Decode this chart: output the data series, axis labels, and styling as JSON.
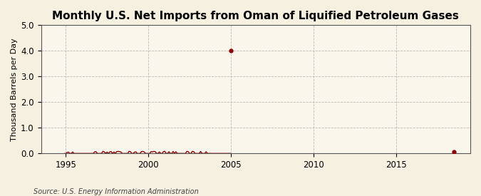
{
  "title": "Monthly U.S. Net Imports from Oman of Liquified Petroleum Gases",
  "ylabel": "Thousand Barrels per Day",
  "source": "Source: U.S. Energy Information Administration",
  "xlim": [
    1993.5,
    2019.5
  ],
  "ylim": [
    0.0,
    5.0
  ],
  "yticks": [
    0.0,
    1.0,
    2.0,
    3.0,
    4.0,
    5.0
  ],
  "xticks": [
    1995,
    2000,
    2005,
    2010,
    2015
  ],
  "bg_color": "#f5f0e0",
  "plot_bg_color": "#faf6ec",
  "line_color": "#8b0000",
  "grid_color": "#aaaaaa",
  "title_fontsize": 11,
  "label_fontsize": 8,
  "tick_fontsize": 8.5,
  "segments": [
    {
      "x": [
        1994.917,
        1995.0,
        1995.083,
        1995.167,
        1995.25,
        1995.333,
        1995.417,
        1995.5,
        1995.583,
        1995.667,
        1995.75,
        1995.833,
        1995.917,
        1996.0,
        1996.083,
        1996.167,
        1996.25,
        1996.333,
        1996.417,
        1996.5,
        1996.583,
        1996.667,
        1996.75,
        1996.833,
        1996.917,
        1997.0,
        1997.083,
        1997.167,
        1997.25,
        1997.333,
        1997.417,
        1997.5,
        1997.583,
        1997.667,
        1997.75,
        1997.833,
        1997.917,
        1998.0,
        1998.083,
        1998.167,
        1998.25,
        1998.333,
        1998.417,
        1998.5,
        1998.583,
        1998.667,
        1998.75,
        1998.833,
        1998.917,
        1999.0,
        1999.083,
        1999.167,
        1999.25,
        1999.333,
        1999.417,
        1999.5,
        1999.583,
        1999.667,
        1999.75,
        1999.833,
        1999.917,
        2000.0,
        2000.083,
        2000.167,
        2000.25,
        2000.333,
        2000.417,
        2000.5,
        2000.583,
        2000.667,
        2000.75,
        2000.833,
        2000.917,
        2001.0,
        2001.083,
        2001.167,
        2001.25,
        2001.333,
        2001.417,
        2001.5,
        2001.583,
        2001.667,
        2001.75,
        2001.833,
        2001.917,
        2002.0,
        2002.083,
        2002.167,
        2002.25,
        2002.333,
        2002.417,
        2002.5,
        2002.583,
        2002.667,
        2002.75,
        2002.833,
        2002.917,
        2003.0,
        2003.083,
        2003.167,
        2003.25,
        2003.333,
        2003.417,
        2003.5,
        2003.583,
        2003.667,
        2003.75,
        2003.833,
        2003.917,
        2004.0,
        2004.083,
        2004.167,
        2004.25,
        2004.333,
        2004.417,
        2004.5,
        2004.583,
        2004.667,
        2004.75,
        2004.833,
        2004.917,
        2005.0
      ],
      "y": [
        0,
        0,
        0.04,
        0.05,
        0,
        0,
        0.06,
        0,
        0,
        0,
        0,
        0,
        0,
        0,
        0,
        0,
        0,
        0,
        0,
        0,
        0,
        0,
        0.06,
        0.07,
        0,
        0,
        0,
        0,
        0.08,
        0.06,
        0,
        0.05,
        0,
        0.06,
        0.07,
        0,
        0.06,
        0,
        0.07,
        0.08,
        0.07,
        0.06,
        0,
        0,
        0,
        0,
        0,
        0.08,
        0.07,
        0,
        0,
        0.05,
        0.06,
        0,
        0,
        0,
        0.07,
        0.08,
        0.06,
        0,
        0,
        0,
        0,
        0.07,
        0.06,
        0.08,
        0.07,
        0,
        0,
        0.06,
        0,
        0,
        0.07,
        0.08,
        0,
        0,
        0.07,
        0,
        0,
        0.08,
        0,
        0.07,
        0,
        0,
        0,
        0,
        0,
        0,
        0,
        0.08,
        0.07,
        0,
        0,
        0.08,
        0.07,
        0,
        0,
        0,
        0,
        0.08,
        0,
        0,
        0,
        0.07,
        0,
        0,
        0,
        0,
        0,
        0,
        0,
        0,
        0,
        0,
        0,
        0,
        0,
        0,
        0,
        0,
        0,
        0
      ]
    }
  ],
  "spike_x": 2005.0,
  "spike_y": 4.0,
  "late_dot_x": 2018.5,
  "late_dot_y": 0.05
}
